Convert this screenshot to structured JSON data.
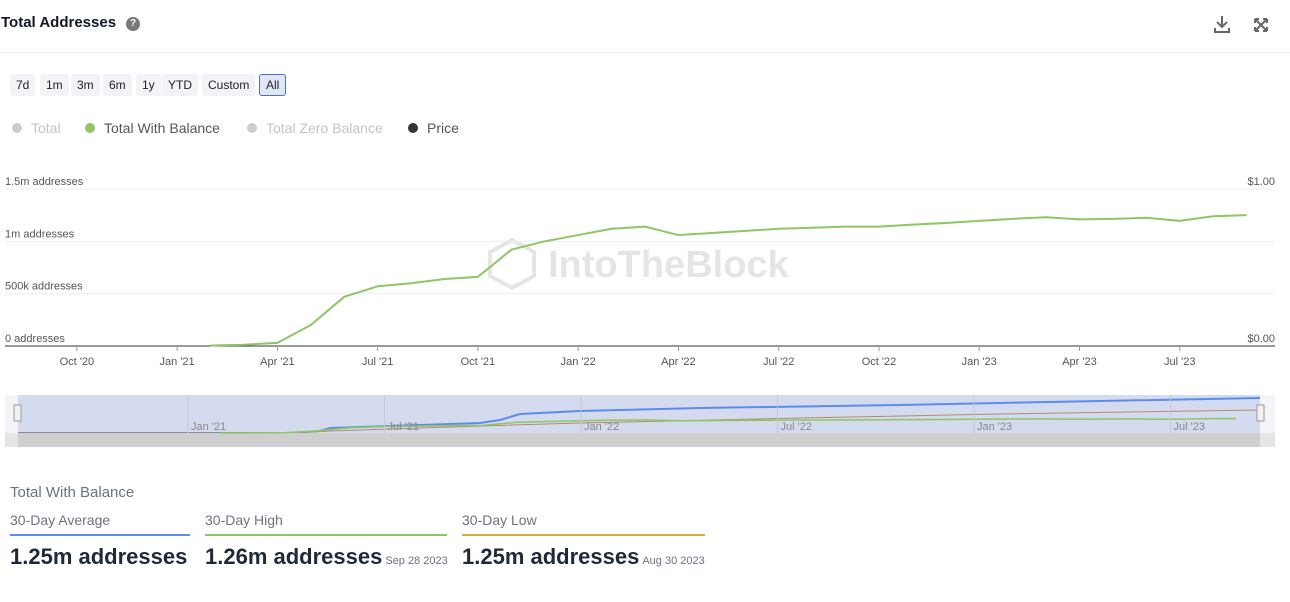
{
  "header": {
    "title": "Total Addresses"
  },
  "range_buttons": [
    "7d",
    "1m",
    "3m",
    "6m",
    "1y",
    "YTD",
    "Custom",
    "All"
  ],
  "active_range": 7,
  "watermark": "IntoTheBlock",
  "chart_data": {
    "type": "line",
    "x": [
      "2021-02",
      "2021-03",
      "2021-04",
      "2021-05",
      "2021-06",
      "2021-07",
      "2021-08",
      "2021-09",
      "2021-10",
      "2021-11",
      "2021-12",
      "2022-01",
      "2022-02",
      "2022-03",
      "2022-04",
      "2022-05",
      "2022-06",
      "2022-07",
      "2022-08",
      "2022-09",
      "2022-10",
      "2022-11",
      "2022-12",
      "2023-01",
      "2023-02",
      "2023-03",
      "2023-04",
      "2023-05",
      "2023-06",
      "2023-07",
      "2023-08",
      "2023-09"
    ],
    "series": [
      {
        "name": "Total",
        "color": "#cccccc",
        "hidden": true
      },
      {
        "name": "Total With Balance",
        "color": "#8cc665",
        "values": [
          5000,
          12000,
          30000,
          200000,
          470000,
          570000,
          600000,
          640000,
          660000,
          920000,
          1000000,
          1060000,
          1120000,
          1140000,
          1060000,
          1080000,
          1100000,
          1120000,
          1130000,
          1140000,
          1140000,
          1160000,
          1175000,
          1195000,
          1215000,
          1230000,
          1210000,
          1215000,
          1225000,
          1195000,
          1240000,
          1250000
        ]
      },
      {
        "name": "Total Zero Balance",
        "color": "#cccccc",
        "hidden": true
      },
      {
        "name": "Price",
        "color": "#333333",
        "axis": "y2"
      }
    ],
    "xlim": [
      "2020-08",
      "2023-10"
    ],
    "xticks": [
      {
        "value": "2020-10",
        "label": "Oct '20"
      },
      {
        "value": "2021-01",
        "label": "Jan '21"
      },
      {
        "value": "2021-04",
        "label": "Apr '21"
      },
      {
        "value": "2021-07",
        "label": "Jul '21"
      },
      {
        "value": "2021-10",
        "label": "Oct '21"
      },
      {
        "value": "2022-01",
        "label": "Jan '22"
      },
      {
        "value": "2022-04",
        "label": "Apr '22"
      },
      {
        "value": "2022-07",
        "label": "Jul '22"
      },
      {
        "value": "2022-10",
        "label": "Oct '22"
      },
      {
        "value": "2023-01",
        "label": "Jan '23"
      },
      {
        "value": "2023-04",
        "label": "Apr '23"
      },
      {
        "value": "2023-07",
        "label": "Jul '23"
      }
    ],
    "ylim": [
      0,
      1500000
    ],
    "yticks": [
      {
        "value": 0,
        "label": "0 addresses"
      },
      {
        "value": 500000,
        "label": "500k addresses"
      },
      {
        "value": 1000000,
        "label": "1m addresses"
      },
      {
        "value": 1500000,
        "label": "1.5m addresses"
      }
    ],
    "y2lim": [
      0,
      1
    ],
    "y2ticks": [
      {
        "value": 0,
        "label": "$0.00"
      },
      {
        "value": 1,
        "label": "$1.00"
      }
    ],
    "grid": true
  },
  "navigator": {
    "ticks": [
      {
        "value": "2021-01",
        "label": "Jan '21"
      },
      {
        "value": "2021-07",
        "label": "Jul '21"
      },
      {
        "value": "2022-01",
        "label": "Jan '22"
      },
      {
        "value": "2022-07",
        "label": "Jul '22"
      },
      {
        "value": "2023-01",
        "label": "Jan '23"
      },
      {
        "value": "2023-07",
        "label": "Jul '23"
      }
    ]
  },
  "stats": {
    "title": "Total With Balance",
    "items": [
      {
        "label": "30-Day Average",
        "value": "1.25m addresses",
        "color": "#5b8def"
      },
      {
        "label": "30-Day High",
        "value": "1.26m addresses",
        "date": "Sep 28 2023",
        "color": "#8cc665"
      },
      {
        "label": "30-Day Low",
        "value": "1.25m addresses",
        "date": "Aug 30 2023",
        "color": "#d4b03a"
      }
    ]
  }
}
